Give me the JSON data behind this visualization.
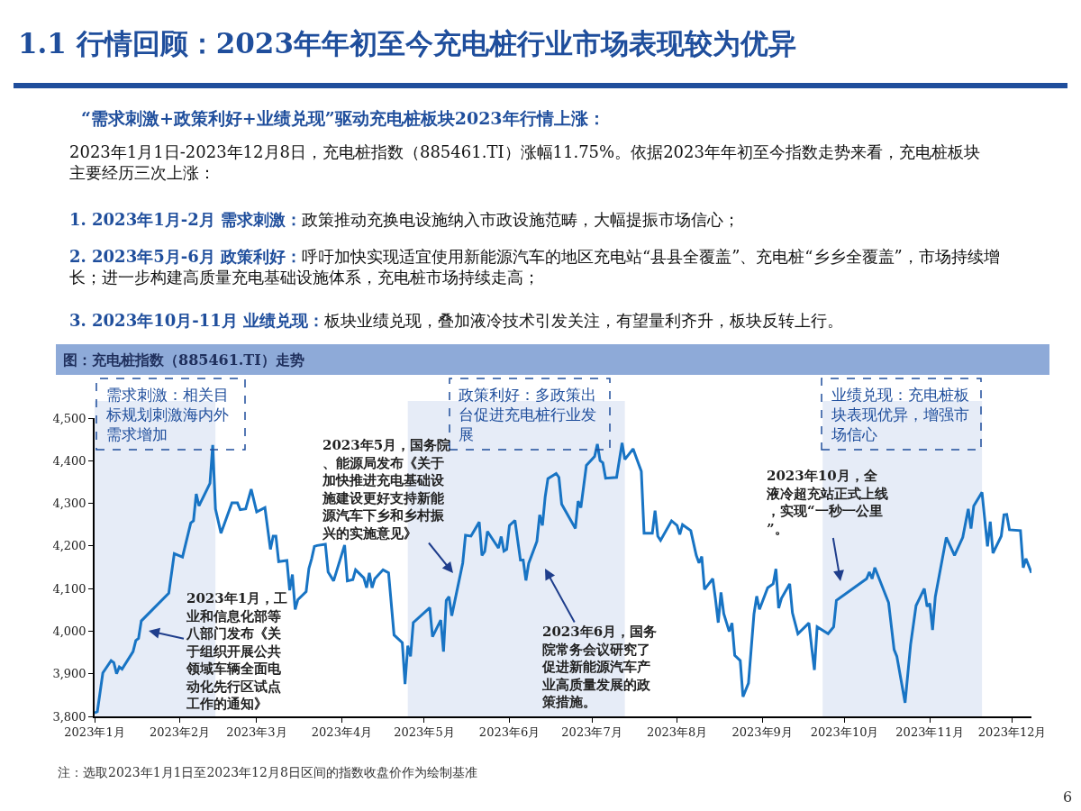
{
  "chart_data": {
    "type": "line",
    "title": "1.1 行情回顾：2023年年初至今充电桩行业市场表现较为优异",
    "subtitle": "“需求刺激+政策利好+业绩兑现”驱动充电桩板块2023年行情上涨：",
    "x": [
      "2023-01-01",
      "2023-01-02",
      "2023-01-04",
      "2023-01-07",
      "2023-01-08",
      "2023-01-09",
      "2023-01-10",
      "2023-01-11",
      "2023-01-15",
      "2023-01-16",
      "2023-01-17",
      "2023-01-18",
      "2023-01-28",
      "2023-01-30",
      "2023-02-02",
      "2023-02-05",
      "2023-02-06",
      "2023-02-07",
      "2023-02-08",
      "2023-02-12",
      "2023-02-13",
      "2023-02-14",
      "2023-02-16",
      "2023-02-20",
      "2023-02-22",
      "2023-02-23",
      "2023-02-25",
      "2023-02-27",
      "2023-03-01",
      "2023-03-04",
      "2023-03-06",
      "2023-03-07",
      "2023-03-08",
      "2023-03-09",
      "2023-03-12",
      "2023-03-13",
      "2023-03-14",
      "2023-03-15",
      "2023-03-16",
      "2023-03-19",
      "2023-03-20",
      "2023-03-21",
      "2023-03-22",
      "2023-03-23",
      "2023-03-26",
      "2023-03-27",
      "2023-03-29",
      "2023-04-02",
      "2023-04-03",
      "2023-04-05",
      "2023-04-06",
      "2023-04-09",
      "2023-04-10",
      "2023-04-11",
      "2023-04-12",
      "2023-04-13",
      "2023-04-16",
      "2023-04-18",
      "2023-04-20",
      "2023-04-23",
      "2023-04-24",
      "2023-04-25",
      "2023-04-26",
      "2023-04-27",
      "2023-05-03",
      "2023-05-04",
      "2023-05-07",
      "2023-05-08",
      "2023-05-09",
      "2023-05-10",
      "2023-05-11",
      "2023-05-15",
      "2023-05-16",
      "2023-05-18",
      "2023-05-21",
      "2023-05-22",
      "2023-05-23",
      "2023-05-24",
      "2023-05-28",
      "2023-05-29",
      "2023-05-30",
      "2023-05-31",
      "2023-06-01",
      "2023-06-03",
      "2023-06-05",
      "2023-06-06",
      "2023-06-07",
      "2023-06-08",
      "2023-06-11",
      "2023-06-12",
      "2023-06-13",
      "2023-06-14",
      "2023-06-15",
      "2023-06-18",
      "2023-06-19",
      "2023-06-20",
      "2023-06-25",
      "2023-06-26",
      "2023-06-27",
      "2023-06-29",
      "2023-07-02",
      "2023-07-03",
      "2023-07-04",
      "2023-07-05",
      "2023-07-06",
      "2023-07-10",
      "2023-07-12",
      "2023-07-13",
      "2023-07-16",
      "2023-07-19",
      "2023-07-20",
      "2023-07-23",
      "2023-07-24",
      "2023-07-25",
      "2023-07-26",
      "2023-07-30",
      "2023-08-01",
      "2023-08-02",
      "2023-08-03",
      "2023-08-06",
      "2023-08-08",
      "2023-08-09",
      "2023-08-10",
      "2023-08-11",
      "2023-08-14",
      "2023-08-15",
      "2023-08-16",
      "2023-08-17",
      "2023-08-18",
      "2023-08-20",
      "2023-08-21",
      "2023-08-22",
      "2023-08-24",
      "2023-08-25",
      "2023-08-27",
      "2023-08-29",
      "2023-08-30",
      "2023-08-31",
      "2023-09-03",
      "2023-09-05",
      "2023-09-06",
      "2023-09-07",
      "2023-09-08",
      "2023-09-11",
      "2023-09-12",
      "2023-09-14",
      "2023-09-18",
      "2023-09-19",
      "2023-09-20",
      "2023-09-21",
      "2023-09-25",
      "2023-09-27",
      "2023-09-28",
      "2023-10-09",
      "2023-10-10",
      "2023-10-11",
      "2023-10-12",
      "2023-10-17",
      "2023-10-19",
      "2023-10-20",
      "2023-10-23",
      "2023-10-25",
      "2023-10-27",
      "2023-10-30",
      "2023-10-31",
      "2023-11-01",
      "2023-11-02",
      "2023-11-03",
      "2023-11-07",
      "2023-11-10",
      "2023-11-13",
      "2023-11-15",
      "2023-11-16",
      "2023-11-17",
      "2023-11-20",
      "2023-11-22",
      "2023-11-23",
      "2023-11-24",
      "2023-11-27",
      "2023-11-28",
      "2023-11-29",
      "2023-11-30",
      "2023-12-04",
      "2023-12-05",
      "2023-12-06",
      "2023-12-08"
    ],
    "series": [
      {
        "color": "#1874c4",
        "values": [
          3808,
          3811,
          3902,
          3931,
          3926,
          3900,
          3916,
          3911,
          3952,
          3978,
          3983,
          4024,
          4089,
          4182,
          4174,
          4254,
          4259,
          4322,
          4294,
          4347,
          4437,
          4287,
          4230,
          4301,
          4301,
          4285,
          4287,
          4333,
          4280,
          4290,
          4192,
          4223,
          4223,
          4163,
          4166,
          4096,
          4133,
          4051,
          4074,
          4093,
          4147,
          4170,
          4199,
          4201,
          4204,
          4139,
          4118,
          4202,
          4118,
          4121,
          4144,
          4125,
          4102,
          4137,
          4102,
          4123,
          4144,
          4137,
          3991,
          3973,
          3876,
          3966,
          3941,
          4020,
          4055,
          3987,
          4026,
          3952,
          4072,
          4081,
          4036,
          4160,
          4225,
          4223,
          4256,
          4178,
          4187,
          4234,
          4195,
          4222,
          4188,
          4192,
          4248,
          4260,
          4167,
          4167,
          4119,
          4159,
          4211,
          4273,
          4248,
          4315,
          4358,
          4370,
          4361,
          4298,
          4241,
          4305,
          4290,
          4389,
          4410,
          4439,
          4400,
          4395,
          4359,
          4361,
          4442,
          4403,
          4428,
          4375,
          4230,
          4230,
          4283,
          4223,
          4213,
          4259,
          4248,
          4227,
          4250,
          4236,
          4178,
          4160,
          4175,
          4098,
          4123,
          4075,
          4020,
          4091,
          4041,
          3999,
          4019,
          3943,
          3931,
          3846,
          3878,
          4040,
          4082,
          4051,
          4102,
          4111,
          4146,
          4054,
          4077,
          4111,
          4043,
          3994,
          4019,
          3962,
          3909,
          4010,
          3994,
          4010,
          4072,
          4123,
          4139,
          4123,
          4149,
          4067,
          3957,
          3941,
          3832,
          3968,
          4060,
          4100,
          4058,
          4065,
          4003,
          4081,
          4220,
          4178,
          4220,
          4287,
          4241,
          4294,
          4326,
          4199,
          4257,
          4183,
          4223,
          4273,
          4274,
          4238,
          4236,
          4149,
          4170,
          4137
        ]
      }
    ],
    "xlim": [
      "2023-01-01",
      "2023-12-08"
    ],
    "xticks": [
      {
        "value": "2023-01-01",
        "label": "2023年1月"
      },
      {
        "value": "2023-02-01",
        "label": "2023年2月"
      },
      {
        "value": "2023-03-01",
        "label": "2023年3月"
      },
      {
        "value": "2023-04-01",
        "label": "2023年4月"
      },
      {
        "value": "2023-05-01",
        "label": "2023年5月"
      },
      {
        "value": "2023-06-01",
        "label": "2023年6月"
      },
      {
        "value": "2023-07-01",
        "label": "2023年7月"
      },
      {
        "value": "2023-08-01",
        "label": "2023年8月"
      },
      {
        "value": "2023-09-01",
        "label": "2023年9月"
      },
      {
        "value": "2023-10-01",
        "label": "2023年10月"
      },
      {
        "value": "2023-11-01",
        "label": "2023年11月"
      },
      {
        "value": "2023-12-01",
        "label": "2023年12月"
      }
    ],
    "ylim": [
      3800,
      4500
    ],
    "yticks": [
      {
        "value": 3800,
        "label": "3,800"
      },
      {
        "value": 3900,
        "label": "3,900"
      },
      {
        "value": 4000,
        "label": "4,000"
      },
      {
        "value": 4100,
        "label": "4,100"
      },
      {
        "value": 4200,
        "label": "4,200"
      },
      {
        "value": 4300,
        "label": "4,300"
      },
      {
        "value": 4400,
        "label": "4,400"
      },
      {
        "value": 4500,
        "label": "4,500"
      }
    ],
    "grid": false,
    "bands": [
      {
        "axis": "x",
        "from": "2023-01-01",
        "to": "2023-02-14",
        "label": "需求刺激：相关目标规划刺激海内外需求增加",
        "color": "#e6ecf7"
      },
      {
        "axis": "x",
        "from": "2023-04-25",
        "to": "2023-07-13",
        "label": "政策利好：多政策出台促进充电桩行业发展",
        "color": "#e6ecf7"
      },
      {
        "axis": "x",
        "from": "2023-09-23",
        "to": "2023-11-20",
        "label": "业绩兑现：充电桩板块表现优异，增强市场信心",
        "color": "#e6ecf7"
      }
    ],
    "annotations": [
      "2023年1月1日-2023年12月8日，充电桩指数（885461.TI）涨幅11.75%。依据2023年年初至今指数走势来看，充电桩板块主要经历三次上涨：",
      "1. 2023年1月-2月 需求刺激：政策推动充换电设施纳入市政设施范畴，大幅提振市场信心；",
      "2. 2023年5月-6月 政策利好：呼吁加快实现适宜使用新能源汽车的地区充电站“县县全覆盖”、充电桩“乡乡全覆盖”，市场持续增长；进一步构建高质量充电基础设施体系，充电桩市场持续走高；",
      "3. 2023年10月-11月 业绩兑现：板块业绩兑现，叠加液冷技术引发关注，有望量利齐升，板块反转上行。",
      "图：充电桩指数（885461.TI）走势",
      "2023年1月，工业和信息化部等八部门发布《关于组织开展公共领域车辆全面电动化先行区试点工作的通知》",
      "2023年5月，国务院、能源局发布《关于加快推进充电基础设施建设更好支持新能源汽车下乡和乡村振兴的实施意见》",
      "2023年6月，国务院常务会议研究了促进新能源汽车产业高质量发展的政策措施。",
      "2023年10月，全液冷超充站正式上线，实现“一秒一公里”。",
      "注：选取2023年1月1日至2023年12月8日区间的指数收盘价作为绘制基准",
      "6"
    ]
  }
}
